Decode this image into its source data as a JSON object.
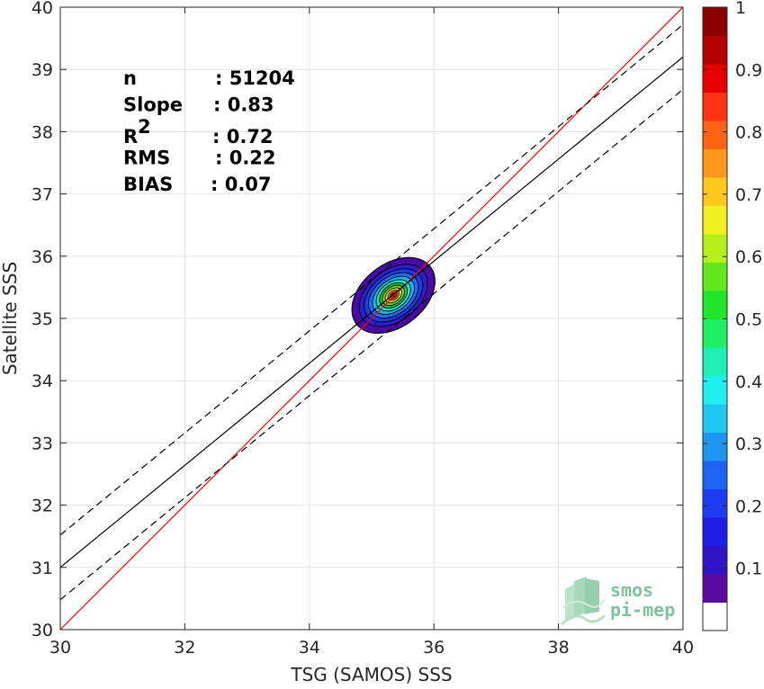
{
  "chart_data": {
    "type": "contour",
    "xlabel": "TSG (SAMOS) SSS",
    "ylabel": "Satellite SSS",
    "xlim": [
      30,
      40
    ],
    "ylim": [
      30,
      40
    ],
    "x_ticks": [
      "30",
      "32",
      "34",
      "36",
      "38",
      "40"
    ],
    "y_ticks": [
      "30",
      "31",
      "32",
      "33",
      "34",
      "35",
      "36",
      "37",
      "38",
      "39",
      "40"
    ],
    "grid": true,
    "stats": [
      {
        "label": "n",
        "value": ": 51204"
      },
      {
        "label": "Slope",
        "value": ": 0.83"
      },
      {
        "label": "R",
        "sup": "2",
        "value": ": 0.72"
      },
      {
        "label": "RMS",
        "value": ": 0.22"
      },
      {
        "label": "BIAS",
        "value": ": 0.07"
      }
    ],
    "lines": [
      {
        "role": "one-to-one",
        "color": "#ff0000",
        "style": "solid",
        "points": [
          [
            30,
            30
          ],
          [
            40,
            40
          ]
        ]
      },
      {
        "role": "regression",
        "color": "#000000",
        "style": "solid",
        "points": [
          [
            30,
            31.0
          ],
          [
            40,
            39.2
          ]
        ]
      },
      {
        "role": "regression-upper",
        "color": "#000000",
        "style": "dashed",
        "points": [
          [
            30,
            31.52
          ],
          [
            40,
            39.72
          ]
        ]
      },
      {
        "role": "regression-lower",
        "color": "#000000",
        "style": "dashed",
        "points": [
          [
            30,
            30.48
          ],
          [
            40,
            38.68
          ]
        ]
      }
    ],
    "density_contours": {
      "center": [
        35.35,
        35.37
      ],
      "rotation_deg": 38,
      "levels": [
        0.05,
        0.1,
        0.15,
        0.2,
        0.3,
        0.4,
        0.5,
        0.6,
        0.7,
        0.8,
        0.9,
        1.0
      ],
      "colors": [
        "#4b0aa8",
        "#2d1ec8",
        "#1f3ae6",
        "#1f6ef0",
        "#1fb4f0",
        "#1fe6c8",
        "#1ec83c",
        "#78e61e",
        "#f5e61e",
        "#ff9600",
        "#ff3c00",
        "#c80000"
      ],
      "half_axes": [
        [
          0.75,
          0.5
        ],
        [
          0.62,
          0.41
        ],
        [
          0.53,
          0.35
        ],
        [
          0.45,
          0.3
        ],
        [
          0.38,
          0.25
        ],
        [
          0.31,
          0.21
        ],
        [
          0.25,
          0.17
        ],
        [
          0.2,
          0.135
        ],
        [
          0.15,
          0.1
        ],
        [
          0.1,
          0.068
        ],
        [
          0.062,
          0.042
        ],
        [
          0.03,
          0.022
        ]
      ]
    },
    "colorbar": {
      "range": [
        0,
        1
      ],
      "tick_labels": [
        "0.1",
        "0.2",
        "0.3",
        "0.4",
        "0.5",
        "0.6",
        "0.7",
        "0.8",
        "0.9",
        "1"
      ],
      "colors": [
        "#ffffff",
        "#5a0aa0",
        "#3214c8",
        "#1e1ee6",
        "#1e3cf0",
        "#1e64f0",
        "#1e96f0",
        "#1ec8f0",
        "#1ef0f0",
        "#1ef0b4",
        "#1ef064",
        "#1ee628",
        "#64e61e",
        "#b4f01e",
        "#f0f01e",
        "#ffc81e",
        "#ff961e",
        "#ff6414",
        "#ff3214",
        "#e60000",
        "#b40000",
        "#8c0000"
      ]
    }
  },
  "logo": {
    "line1": "smos",
    "line2": "pi-mep"
  }
}
